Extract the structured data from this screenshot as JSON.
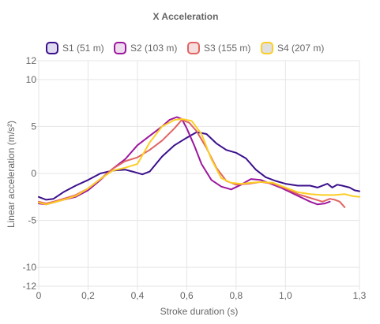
{
  "chart_data": {
    "type": "line",
    "title": "X Acceleration",
    "xlabel": "Stroke duration (s)",
    "ylabel": "Linear acceleration (m/s²)",
    "xlim": [
      0,
      1.3
    ],
    "ylim": [
      -12,
      12
    ],
    "x_ticks": [
      {
        "value": 0,
        "label": "0"
      },
      {
        "value": 0.2,
        "label": "0,2"
      },
      {
        "value": 0.4,
        "label": "0,4"
      },
      {
        "value": 0.6,
        "label": "0,6"
      },
      {
        "value": 0.8,
        "label": "0,8"
      },
      {
        "value": 1.0,
        "label": "1,0"
      },
      {
        "value": 1.3,
        "label": "1,3"
      }
    ],
    "y_ticks": [
      {
        "value": 12,
        "label": "12"
      },
      {
        "value": 10,
        "label": "10"
      },
      {
        "value": 5,
        "label": "5"
      },
      {
        "value": 0,
        "label": "0"
      },
      {
        "value": -5,
        "label": "-5"
      },
      {
        "value": -10,
        "label": "-10"
      },
      {
        "value": -12,
        "label": "-12"
      }
    ],
    "grid": true,
    "legend_position": "top",
    "series": [
      {
        "name": "S1 (51 m)",
        "color": "#3b0f8c",
        "fill": "#e0dcf0",
        "points": [
          [
            0,
            -2.5
          ],
          [
            0.03,
            -2.8
          ],
          [
            0.06,
            -2.7
          ],
          [
            0.1,
            -2.0
          ],
          [
            0.15,
            -1.3
          ],
          [
            0.2,
            -0.7
          ],
          [
            0.25,
            0.0
          ],
          [
            0.3,
            0.3
          ],
          [
            0.35,
            0.4
          ],
          [
            0.38,
            0.2
          ],
          [
            0.42,
            -0.1
          ],
          [
            0.45,
            0.2
          ],
          [
            0.5,
            1.8
          ],
          [
            0.55,
            3.0
          ],
          [
            0.6,
            3.8
          ],
          [
            0.64,
            4.4
          ],
          [
            0.68,
            4.2
          ],
          [
            0.72,
            3.2
          ],
          [
            0.76,
            2.5
          ],
          [
            0.8,
            2.2
          ],
          [
            0.84,
            1.6
          ],
          [
            0.88,
            0.4
          ],
          [
            0.92,
            -0.4
          ],
          [
            0.96,
            -0.8
          ],
          [
            1.0,
            -1.1
          ],
          [
            1.05,
            -1.3
          ],
          [
            1.1,
            -1.3
          ],
          [
            1.13,
            -1.5
          ],
          [
            1.17,
            -1.1
          ],
          [
            1.19,
            -1.5
          ],
          [
            1.21,
            -1.2
          ],
          [
            1.23,
            -1.3
          ],
          [
            1.26,
            -1.5
          ],
          [
            1.28,
            -1.8
          ],
          [
            1.3,
            -1.9
          ]
        ]
      },
      {
        "name": "S2 (103 m)",
        "color": "#9c179e",
        "fill": "#ecdcee",
        "points": [
          [
            0,
            -3.2
          ],
          [
            0.03,
            -3.3
          ],
          [
            0.06,
            -3.1
          ],
          [
            0.1,
            -2.8
          ],
          [
            0.15,
            -2.5
          ],
          [
            0.2,
            -1.8
          ],
          [
            0.25,
            -0.7
          ],
          [
            0.3,
            0.5
          ],
          [
            0.35,
            1.5
          ],
          [
            0.4,
            3.0
          ],
          [
            0.45,
            4.0
          ],
          [
            0.5,
            5.0
          ],
          [
            0.53,
            5.7
          ],
          [
            0.56,
            6.0
          ],
          [
            0.58,
            5.8
          ],
          [
            0.6,
            4.8
          ],
          [
            0.63,
            3.0
          ],
          [
            0.66,
            1.0
          ],
          [
            0.7,
            -0.7
          ],
          [
            0.74,
            -1.4
          ],
          [
            0.78,
            -1.7
          ],
          [
            0.82,
            -1.2
          ],
          [
            0.86,
            -0.6
          ],
          [
            0.9,
            -0.7
          ],
          [
            0.94,
            -1.1
          ],
          [
            0.98,
            -1.5
          ],
          [
            1.02,
            -2.0
          ],
          [
            1.06,
            -2.5
          ],
          [
            1.1,
            -3.0
          ],
          [
            1.13,
            -3.3
          ],
          [
            1.16,
            -3.2
          ],
          [
            1.18,
            -3.0
          ]
        ]
      },
      {
        "name": "S3 (155 m)",
        "color": "#e16462",
        "fill": "#f7dede",
        "points": [
          [
            0,
            -3.0
          ],
          [
            0.03,
            -3.2
          ],
          [
            0.06,
            -3.0
          ],
          [
            0.1,
            -2.7
          ],
          [
            0.15,
            -2.3
          ],
          [
            0.2,
            -1.6
          ],
          [
            0.25,
            -0.6
          ],
          [
            0.3,
            0.5
          ],
          [
            0.35,
            1.3
          ],
          [
            0.4,
            1.7
          ],
          [
            0.45,
            2.5
          ],
          [
            0.5,
            3.5
          ],
          [
            0.55,
            4.8
          ],
          [
            0.58,
            5.7
          ],
          [
            0.61,
            5.4
          ],
          [
            0.64,
            4.5
          ],
          [
            0.68,
            2.7
          ],
          [
            0.72,
            0.6
          ],
          [
            0.76,
            -0.8
          ],
          [
            0.8,
            -1.2
          ],
          [
            0.85,
            -1.1
          ],
          [
            0.9,
            -0.9
          ],
          [
            0.95,
            -1.1
          ],
          [
            1.0,
            -1.6
          ],
          [
            1.05,
            -2.2
          ],
          [
            1.1,
            -2.6
          ],
          [
            1.15,
            -3.0
          ],
          [
            1.18,
            -2.7
          ],
          [
            1.2,
            -2.8
          ],
          [
            1.22,
            -3.0
          ],
          [
            1.24,
            -3.6
          ]
        ]
      },
      {
        "name": "S4 (207 m)",
        "color": "#fcce25",
        "fill": "#e0e0e0",
        "points": [
          [
            0,
            -3.1
          ],
          [
            0.03,
            -3.3
          ],
          [
            0.06,
            -3.1
          ],
          [
            0.1,
            -2.8
          ],
          [
            0.15,
            -2.4
          ],
          [
            0.2,
            -1.6
          ],
          [
            0.25,
            -0.6
          ],
          [
            0.3,
            0.3
          ],
          [
            0.35,
            0.6
          ],
          [
            0.4,
            1.0
          ],
          [
            0.45,
            3.3
          ],
          [
            0.5,
            5.0
          ],
          [
            0.55,
            5.7
          ],
          [
            0.58,
            5.8
          ],
          [
            0.62,
            5.6
          ],
          [
            0.66,
            4.2
          ],
          [
            0.7,
            1.5
          ],
          [
            0.74,
            -0.5
          ],
          [
            0.78,
            -1.0
          ],
          [
            0.82,
            -1.1
          ],
          [
            0.86,
            -1.0
          ],
          [
            0.9,
            -0.9
          ],
          [
            0.95,
            -1.0
          ],
          [
            1.0,
            -1.5
          ],
          [
            1.05,
            -2.0
          ],
          [
            1.1,
            -2.2
          ],
          [
            1.15,
            -2.3
          ],
          [
            1.2,
            -2.3
          ],
          [
            1.24,
            -2.2
          ],
          [
            1.27,
            -2.4
          ],
          [
            1.3,
            -2.5
          ]
        ]
      }
    ]
  }
}
